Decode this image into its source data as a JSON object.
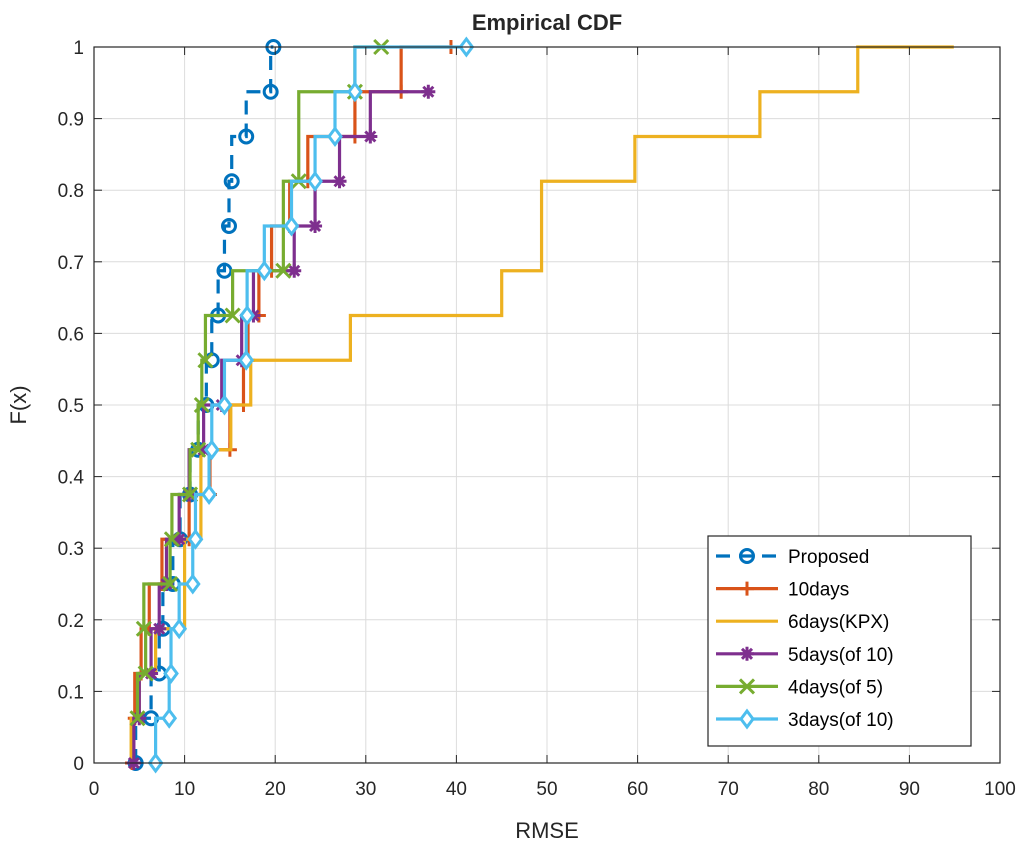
{
  "chart_data": {
    "type": "line",
    "title": "Empirical CDF",
    "xlabel": "RMSE",
    "ylabel": "F(x)",
    "xlim": [
      0,
      100
    ],
    "ylim": [
      0,
      1
    ],
    "xticks": [
      "0",
      "10",
      "20",
      "30",
      "40",
      "50",
      "60",
      "70",
      "80",
      "90",
      "100"
    ],
    "yticks": [
      "0",
      "0.1",
      "0.2",
      "0.3",
      "0.4",
      "0.5",
      "0.6",
      "0.7",
      "0.8",
      "0.9",
      "1"
    ],
    "grid": true,
    "legend_position": "bottom-right",
    "series": [
      {
        "name": "Proposed",
        "color": "#0072BD",
        "line_style": "dashed",
        "marker": "circle",
        "x": [
          4.6,
          6.3,
          7.2,
          7.6,
          8.7,
          9.5,
          10.6,
          11.5,
          12.4,
          13.0,
          13.7,
          14.4,
          14.9,
          15.2,
          16.8,
          19.5,
          19.8
        ],
        "y": [
          0,
          0.0625,
          0.125,
          0.1875,
          0.25,
          0.3125,
          0.375,
          0.4375,
          0.5,
          0.5625,
          0.625,
          0.6875,
          0.75,
          0.8125,
          0.875,
          0.9375,
          1.0
        ]
      },
      {
        "name": "10days",
        "color": "#D95319",
        "line_style": "solid",
        "marker": "plus",
        "x": [
          4.2,
          4.5,
          5.2,
          6.1,
          7.5,
          10.5,
          12.8,
          15.0,
          16.5,
          17.0,
          18.2,
          19.6,
          21.6,
          23.6,
          28.8,
          33.9,
          39.4
        ],
        "y": [
          0,
          0.0625,
          0.125,
          0.1875,
          0.25,
          0.3125,
          0.375,
          0.4375,
          0.5,
          0.5625,
          0.625,
          0.6875,
          0.75,
          0.8125,
          0.875,
          0.9375,
          1.0
        ]
      },
      {
        "name": "6days(KPX)",
        "color": "#EDB120",
        "line_style": "solid",
        "marker": "none",
        "x": [
          4.1,
          5.0,
          6.8,
          10.0,
          11.8,
          15.1,
          17.3,
          28.3,
          45.0,
          49.4,
          59.7,
          73.5,
          84.3,
          94.9
        ],
        "y": [
          0,
          0.0625,
          0.125,
          0.1875,
          0.3125,
          0.4375,
          0.5,
          0.5625,
          0.625,
          0.6875,
          0.8125,
          0.875,
          0.9375,
          1.0
        ]
      },
      {
        "name": "5days(of 10)",
        "color": "#7E2F8E",
        "line_style": "solid",
        "marker": "asterisk",
        "x": [
          4.4,
          5.0,
          6.3,
          7.2,
          8.0,
          9.4,
          10.5,
          12.1,
          14.1,
          16.3,
          17.6,
          22.1,
          24.4,
          27.1,
          30.5,
          36.9
        ],
        "y": [
          0,
          0.0625,
          0.125,
          0.1875,
          0.25,
          0.3125,
          0.375,
          0.4375,
          0.5,
          0.5625,
          0.625,
          0.6875,
          0.75,
          0.8125,
          0.875,
          0.9375
        ]
      },
      {
        "name": "4days(of 5)",
        "color": "#77AC30",
        "line_style": "solid",
        "marker": "x",
        "x": [
          4.8,
          5.7,
          5.5,
          8.4,
          8.6,
          10.6,
          11.5,
          11.9,
          12.3,
          15.3,
          20.9,
          22.6,
          28.8,
          31.7
        ],
        "y": [
          0.0625,
          0.125,
          0.1875,
          0.25,
          0.3125,
          0.375,
          0.4375,
          0.5,
          0.5625,
          0.625,
          0.6875,
          0.8125,
          0.9375,
          1.0
        ]
      },
      {
        "name": "3days(of 10)",
        "color": "#4DBEEE",
        "line_style": "solid",
        "marker": "diamond",
        "x": [
          6.8,
          8.3,
          8.5,
          9.4,
          10.9,
          11.2,
          12.7,
          13.0,
          14.4,
          16.8,
          16.9,
          18.8,
          21.8,
          24.4,
          26.6,
          28.8,
          41.1
        ],
        "y": [
          0,
          0.0625,
          0.125,
          0.1875,
          0.25,
          0.3125,
          0.375,
          0.4375,
          0.5,
          0.5625,
          0.625,
          0.6875,
          0.75,
          0.8125,
          0.875,
          0.9375,
          1.0
        ]
      }
    ]
  }
}
